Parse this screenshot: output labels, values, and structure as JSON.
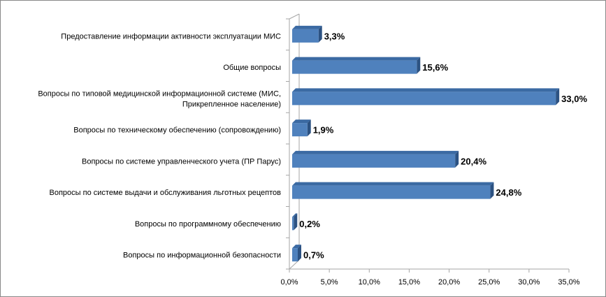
{
  "chart_data": {
    "type": "bar",
    "orientation": "horizontal",
    "style": "3d-clustered",
    "categories": [
      [
        "Предоставление информации активности эксплуатации МИС"
      ],
      [
        "Общие вопросы"
      ],
      [
        "Вопросы по типовой медицинской информационной системе (МИС,",
        "Прикрепленное население)"
      ],
      [
        "Вопросы по техническому обеспечению (сопровождению)"
      ],
      [
        "Вопросы по системе управленческого учета (ПР Парус)"
      ],
      [
        "Вопросы по системе выдачи и обслуживания льготных рецептов"
      ],
      [
        "Вопросы по программному обеспечению"
      ],
      [
        "Вопросы по информационной безопасности"
      ]
    ],
    "values": [
      3.3,
      15.6,
      33.0,
      1.9,
      20.4,
      24.8,
      0.2,
      0.7
    ],
    "data_labels": [
      "3,3%",
      "15,6%",
      "33,0%",
      "1,9%",
      "20,4%",
      "24,8%",
      "0,2%",
      "0,7%"
    ],
    "xlim": [
      0,
      35
    ],
    "x_ticks": [
      0,
      5,
      10,
      15,
      20,
      25,
      30,
      35
    ],
    "x_tick_labels": [
      "0,0%",
      "5,0%",
      "10,0%",
      "15,0%",
      "20,0%",
      "25,0%",
      "30,0%",
      "35,0%"
    ],
    "title": "",
    "xlabel": "",
    "ylabel": "",
    "legend": "none",
    "colors": {
      "bar_front": "#4f81bd",
      "bar_top": "#3b6aa3",
      "bar_side": "#2c5282",
      "axis": "#a6a6a6",
      "border": "#898989"
    }
  }
}
